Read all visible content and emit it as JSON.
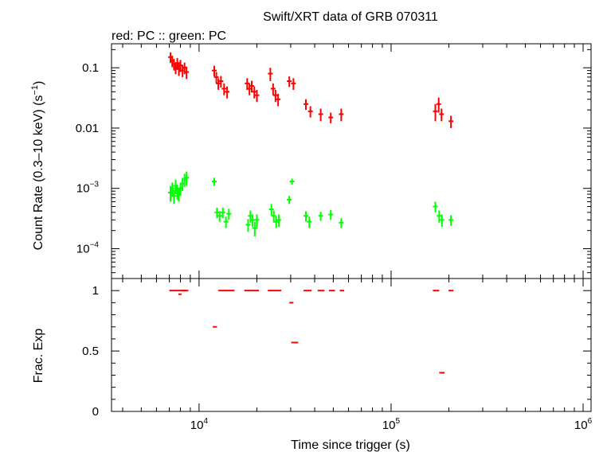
{
  "chart_data": [
    {
      "type": "scatter",
      "title": "Swift/XRT data of GRB 070311",
      "subtitle": "red: PC  :: green: PC",
      "ylabel": "Count Rate (0.3–10 keV) (s",
      "ylabel_sup": "−1",
      "ylabel_end": ")",
      "xscale": "log",
      "yscale": "log",
      "xlim": [
        3500,
        1100000
      ],
      "ylim": [
        3.2e-05,
        0.25
      ],
      "yticks": [
        {
          "value": 0.1,
          "label": "0.1"
        },
        {
          "value": 0.01,
          "label": "0.01"
        },
        {
          "value": 0.001,
          "base": "10",
          "exp": "−3"
        },
        {
          "value": 0.0001,
          "base": "10",
          "exp": "−4"
        }
      ],
      "series": [
        {
          "color": "#ff0000",
          "points": [
            [
              7100,
              0.15,
              0.03
            ],
            [
              7250,
              0.13,
              0.028
            ],
            [
              7400,
              0.115,
              0.025
            ],
            [
              7550,
              0.1,
              0.022
            ],
            [
              7700,
              0.12,
              0.025
            ],
            [
              7850,
              0.095,
              0.022
            ],
            [
              8000,
              0.11,
              0.025
            ],
            [
              8200,
              0.09,
              0.02
            ],
            [
              8400,
              0.1,
              0.022
            ],
            [
              8600,
              0.085,
              0.02
            ],
            [
              12000,
              0.09,
              0.018
            ],
            [
              12300,
              0.07,
              0.015
            ],
            [
              12600,
              0.055,
              0.012
            ],
            [
              13000,
              0.06,
              0.013
            ],
            [
              13500,
              0.045,
              0.01
            ],
            [
              14000,
              0.04,
              0.009
            ],
            [
              17800,
              0.055,
              0.012
            ],
            [
              18300,
              0.045,
              0.01
            ],
            [
              18800,
              0.05,
              0.011
            ],
            [
              19400,
              0.04,
              0.009
            ],
            [
              20000,
              0.035,
              0.008
            ],
            [
              23500,
              0.08,
              0.02
            ],
            [
              24300,
              0.045,
              0.01
            ],
            [
              25000,
              0.035,
              0.008
            ],
            [
              25800,
              0.03,
              0.007
            ],
            [
              29500,
              0.06,
              0.012
            ],
            [
              31000,
              0.055,
              0.012
            ],
            [
              36000,
              0.025,
              0.005
            ],
            [
              38000,
              0.019,
              0.004
            ],
            [
              43000,
              0.017,
              0.004
            ],
            [
              48500,
              0.015,
              0.003
            ],
            [
              55000,
              0.017,
              0.004
            ],
            [
              170000,
              0.019,
              0.006
            ],
            [
              177000,
              0.025,
              0.007
            ],
            [
              183000,
              0.017,
              0.004
            ],
            [
              205000,
              0.013,
              0.003
            ]
          ]
        },
        {
          "color": "#00ff00",
          "points": [
            [
              7100,
              0.00085,
              0.00025
            ],
            [
              7250,
              0.001,
              0.00025
            ],
            [
              7400,
              0.00075,
              0.0002
            ],
            [
              7550,
              0.0011,
              0.0003
            ],
            [
              7700,
              0.0009,
              0.00025
            ],
            [
              7850,
              0.0008,
              0.0002
            ],
            [
              8000,
              0.001,
              0.00025
            ],
            [
              8200,
              0.0012,
              0.0003
            ],
            [
              8400,
              0.0014,
              0.00035
            ],
            [
              8600,
              0.0015,
              0.0004
            ],
            [
              12000,
              0.0013,
              0.0002
            ],
            [
              12400,
              0.0004,
              8e-05
            ],
            [
              12800,
              0.00035,
              7e-05
            ],
            [
              13300,
              0.0004,
              8e-05
            ],
            [
              13800,
              0.00028,
              6e-05
            ],
            [
              14300,
              0.00038,
              8e-05
            ],
            [
              18000,
              0.00025,
              6e-05
            ],
            [
              18500,
              0.00035,
              8e-05
            ],
            [
              19000,
              0.0003,
              7e-05
            ],
            [
              19500,
              0.00022,
              6e-05
            ],
            [
              20000,
              0.0003,
              7e-05
            ],
            [
              23800,
              0.00045,
              0.0001
            ],
            [
              24500,
              0.00035,
              8e-05
            ],
            [
              25200,
              0.00028,
              6e-05
            ],
            [
              26000,
              0.0003,
              7e-05
            ],
            [
              29500,
              0.00065,
              0.0001
            ],
            [
              30500,
              0.0013,
              0.00015
            ],
            [
              36000,
              0.00035,
              7e-05
            ],
            [
              37500,
              0.00028,
              6e-05
            ],
            [
              43000,
              0.00035,
              6e-05
            ],
            [
              48500,
              0.00037,
              7e-05
            ],
            [
              55000,
              0.00027,
              5e-05
            ],
            [
              170000,
              0.0005,
              0.0001
            ],
            [
              178000,
              0.00035,
              8e-05
            ],
            [
              184000,
              0.0003,
              7e-05
            ],
            [
              205000,
              0.0003,
              6e-05
            ]
          ]
        }
      ]
    },
    {
      "type": "scatter",
      "ylabel": "Frac. Exp",
      "xlabel": "Time since trigger (s)",
      "xscale": "log",
      "xlim": [
        3500,
        1100000
      ],
      "ylim": [
        0,
        1.1
      ],
      "yticks": [
        {
          "value": 0,
          "label": "0"
        },
        {
          "value": 0.5,
          "label": "0.5"
        },
        {
          "value": 1,
          "label": "1"
        }
      ],
      "xticks": [
        {
          "value": 10000,
          "base": "10",
          "exp": "4"
        },
        {
          "value": 100000,
          "base": "10",
          "exp": "5"
        },
        {
          "value": 1000000,
          "base": "10",
          "exp": "6"
        }
      ],
      "series": [
        {
          "color": "#ff0000",
          "segments": [
            [
              7000,
              8600,
              1.0
            ],
            [
              7800,
              8100,
              0.97
            ],
            [
              8100,
              8800,
              1.0
            ],
            [
              11800,
              12400,
              0.7
            ],
            [
              12600,
              15300,
              1.0
            ],
            [
              17200,
              20500,
              1.0
            ],
            [
              22800,
              26800,
              1.0
            ],
            [
              29500,
              31000,
              0.9
            ],
            [
              30200,
              32800,
              0.57
            ],
            [
              35000,
              38500,
              1.0
            ],
            [
              41500,
              45000,
              1.0
            ],
            [
              47500,
              51000,
              1.0
            ],
            [
              54000,
              57000,
              1.0
            ],
            [
              165000,
              178000,
              1.0
            ],
            [
              178000,
              190000,
              0.32
            ],
            [
              199000,
              211000,
              1.0
            ]
          ]
        }
      ]
    }
  ]
}
